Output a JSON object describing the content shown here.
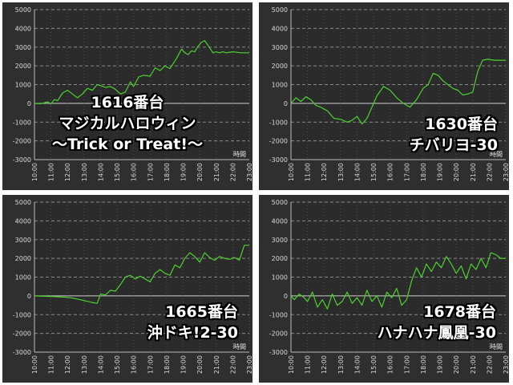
{
  "chart_data": [
    {
      "type": "line",
      "machine": "1616番台",
      "title_lines": [
        "1616番台",
        "マジカルハロウィン",
        "〜Trick or Treat!〜"
      ],
      "xlabel": "時間",
      "x_ticks": [
        "10:00",
        "11:00",
        "12:00",
        "13:00",
        "14:00",
        "15:00",
        "16:00",
        "17:00",
        "18:00",
        "19:00",
        "20:00",
        "21:00",
        "22:00",
        "23:00"
      ],
      "y_ticks": [
        5000,
        4000,
        3000,
        2000,
        1000,
        0,
        -1000,
        -2000,
        -3000
      ],
      "ylim": [
        -3000,
        5000
      ],
      "xlim": [
        10,
        23
      ],
      "line_color": "#4cd22e",
      "x": [
        10,
        10.4,
        10.8,
        11,
        11.2,
        11.4,
        11.7,
        12,
        12.3,
        12.6,
        12.9,
        13.2,
        13.5,
        13.8,
        14,
        14.3,
        14.6,
        14.9,
        15.2,
        15.5,
        15.8,
        16,
        16.3,
        16.6,
        17,
        17.3,
        17.6,
        17.9,
        18.2,
        18.6,
        18.9,
        19.1,
        19.3,
        19.5,
        19.7,
        19.9,
        20.1,
        20.3,
        20.5,
        20.8,
        21,
        21.2,
        21.4,
        21.6,
        22,
        22.5,
        23
      ],
      "y": [
        0,
        -20,
        80,
        -30,
        200,
        150,
        550,
        700,
        500,
        300,
        500,
        800,
        700,
        1000,
        950,
        850,
        900,
        750,
        500,
        600,
        1150,
        900,
        1400,
        1500,
        1450,
        1900,
        1750,
        2000,
        1850,
        2400,
        2900,
        2700,
        2600,
        2800,
        2750,
        3050,
        3250,
        3350,
        3100,
        2700,
        2750,
        2700,
        2750,
        2700,
        2750,
        2700,
        2700
      ]
    },
    {
      "type": "line",
      "machine": "1630番台",
      "title_lines": [
        "1630番台",
        "チバリヨ-30"
      ],
      "xlabel": "時間",
      "x_ticks": [
        "10:00",
        "11:00",
        "12:00",
        "13:00",
        "14:00",
        "15:00",
        "16:00",
        "17:00",
        "18:00",
        "19:00",
        "20:00",
        "21:00",
        "22:00",
        "23:00"
      ],
      "y_ticks": [
        5000,
        4000,
        3000,
        2000,
        1000,
        0,
        -1000,
        -2000,
        -3000
      ],
      "ylim": [
        -3000,
        5000
      ],
      "xlim": [
        10,
        23
      ],
      "line_color": "#4cd22e",
      "x": [
        10,
        10.3,
        10.6,
        10.9,
        11.2,
        11.5,
        11.8,
        12.2,
        12.6,
        13,
        13.4,
        13.7,
        14,
        14.3,
        14.6,
        14.9,
        15.2,
        15.6,
        16,
        16.4,
        16.8,
        17.2,
        17.6,
        18,
        18.3,
        18.6,
        18.9,
        19.2,
        19.5,
        19.8,
        20.1,
        20.4,
        20.7,
        21,
        21.3,
        21.6,
        21.9,
        22.3,
        22.7,
        23
      ],
      "y": [
        0,
        300,
        100,
        350,
        200,
        -100,
        -200,
        -400,
        -800,
        -850,
        -1000,
        -900,
        -700,
        -1100,
        -800,
        -200,
        400,
        900,
        700,
        300,
        0,
        -200,
        200,
        800,
        1000,
        1600,
        1500,
        1200,
        1000,
        800,
        700,
        450,
        500,
        600,
        1700,
        2300,
        2350,
        2300,
        2300,
        2300
      ]
    },
    {
      "type": "line",
      "machine": "1665番台",
      "title_lines": [
        "1665番台",
        "沖ドキ!2-30"
      ],
      "xlabel": "時間",
      "x_ticks": [
        "10:00",
        "11:00",
        "12:00",
        "13:00",
        "14:00",
        "15:00",
        "16:00",
        "17:00",
        "18:00",
        "19:00",
        "20:00",
        "21:00",
        "22:00",
        "23:00"
      ],
      "y_ticks": [
        5000,
        4000,
        3000,
        2000,
        1000,
        0,
        -1000,
        -2000,
        -3000
      ],
      "ylim": [
        -3000,
        5000
      ],
      "xlim": [
        10,
        23
      ],
      "line_color": "#4cd22e",
      "x": [
        10,
        11,
        12,
        12.5,
        13,
        13.5,
        13.8,
        14,
        14.3,
        14.6,
        14.9,
        15.2,
        15.5,
        15.8,
        16.1,
        16.4,
        16.7,
        17,
        17.3,
        17.6,
        17.9,
        18.2,
        18.5,
        18.8,
        19.1,
        19.4,
        19.7,
        20,
        20.3,
        20.6,
        20.9,
        21.2,
        21.5,
        21.8,
        22.1,
        22.4,
        22.7,
        23
      ],
      "y": [
        0,
        -30,
        -80,
        -150,
        -250,
        -350,
        -400,
        100,
        50,
        300,
        250,
        600,
        1000,
        1100,
        900,
        1050,
        900,
        750,
        1200,
        1400,
        1200,
        1100,
        1650,
        1500,
        2000,
        2300,
        2100,
        1800,
        2300,
        2050,
        1900,
        2100,
        2000,
        1950,
        2050,
        1900,
        2700,
        2700
      ]
    },
    {
      "type": "line",
      "machine": "1678番台",
      "title_lines": [
        "1678番台",
        "ハナハナ鳳凰-30"
      ],
      "xlabel": "時間",
      "x_ticks": [
        "10:00",
        "11:00",
        "12:00",
        "13:00",
        "14:00",
        "15:00",
        "16:00",
        "17:00",
        "18:00",
        "19:00",
        "20:00",
        "21:00",
        "22:00",
        "23:00"
      ],
      "y_ticks": [
        5000,
        4000,
        3000,
        2000,
        1000,
        0,
        -1000,
        -2000,
        -3000
      ],
      "ylim": [
        -3000,
        5000
      ],
      "xlim": [
        10,
        23
      ],
      "line_color": "#4cd22e",
      "x": [
        10,
        10.2,
        10.5,
        10.8,
        11,
        11.3,
        11.6,
        11.9,
        12.2,
        12.5,
        12.8,
        13.1,
        13.4,
        13.7,
        14,
        14.3,
        14.6,
        14.9,
        15.2,
        15.5,
        15.8,
        16.1,
        16.4,
        16.7,
        17,
        17.3,
        17.6,
        17.9,
        18.2,
        18.5,
        18.8,
        19.1,
        19.4,
        19.7,
        20,
        20.3,
        20.6,
        20.9,
        21.2,
        21.5,
        21.8,
        22.1,
        22.4,
        22.7,
        23
      ],
      "y": [
        0,
        -200,
        100,
        -100,
        -300,
        200,
        -600,
        -200,
        -700,
        100,
        -500,
        -300,
        200,
        -400,
        -100,
        -500,
        300,
        -300,
        0,
        -600,
        200,
        -100,
        400,
        -500,
        -200,
        800,
        1500,
        1000,
        1700,
        1300,
        1800,
        1500,
        2100,
        1700,
        1200,
        1600,
        900,
        1700,
        1400,
        2000,
        1500,
        2300,
        2200,
        2000,
        2000
      ]
    }
  ]
}
